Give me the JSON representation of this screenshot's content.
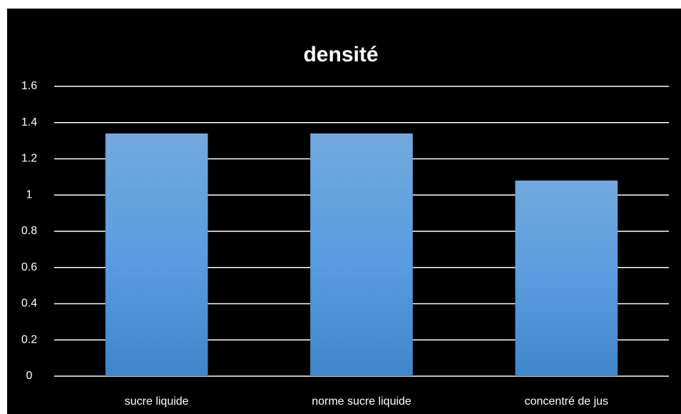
{
  "chart_data": {
    "type": "bar",
    "title": "densité",
    "categories": [
      "sucre liquide",
      "norme sucre liquide",
      "concentré de jus"
    ],
    "values": [
      1.34,
      1.34,
      1.08
    ],
    "color": "#5b9bd5",
    "ylim": [
      0,
      1.6
    ],
    "yticks": [
      0,
      0.2,
      0.4,
      0.6,
      0.8,
      1,
      1.2,
      1.4,
      1.6
    ],
    "grid": true
  }
}
